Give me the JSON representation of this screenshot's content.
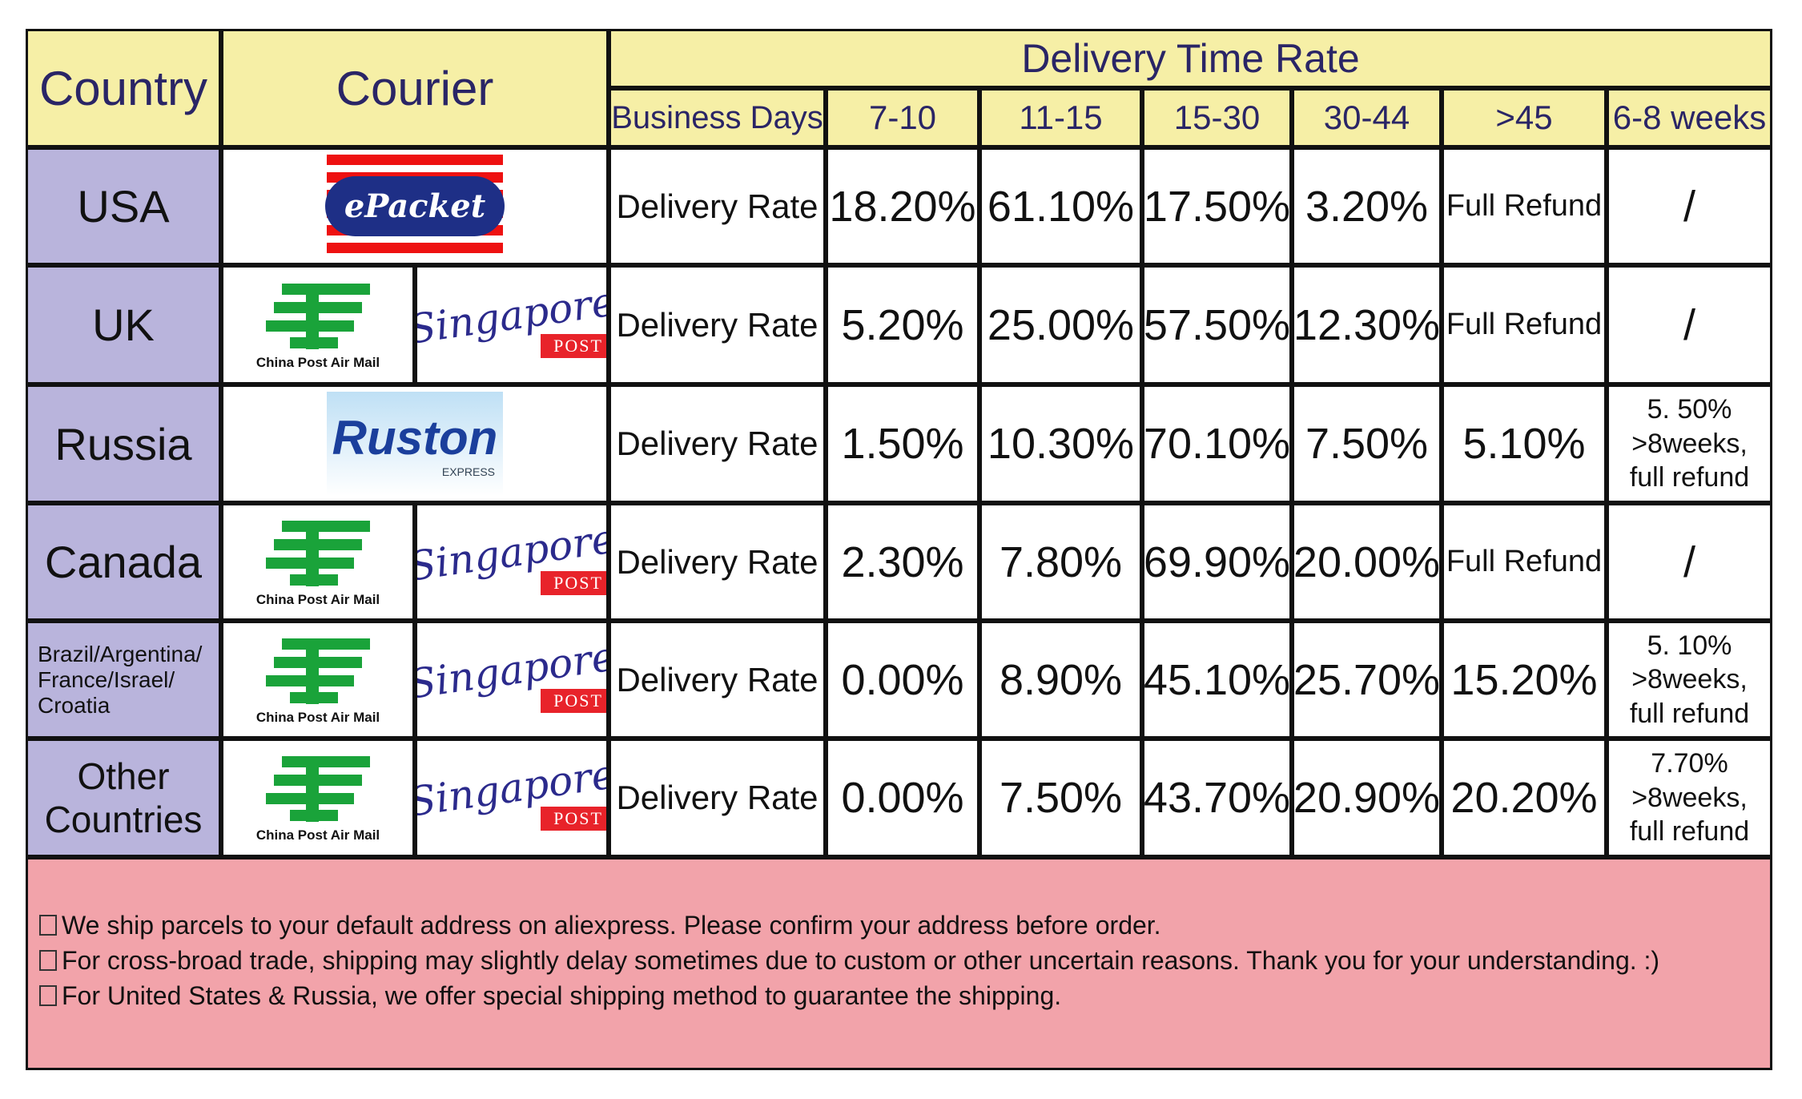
{
  "header": {
    "country": "Country",
    "courier": "Courier",
    "group": "Delivery Time Rate",
    "columns": [
      "Business Days",
      "7-10",
      "11-15",
      "15-30",
      "30-44",
      ">45",
      "6-8 weeks"
    ]
  },
  "rows": [
    {
      "country": "USA",
      "couriers": [
        [
          "ePacket"
        ]
      ],
      "label": "Delivery Rate",
      "rates": [
        "18.20%",
        "61.10%",
        "17.50%",
        "3.20%",
        "Full Refund",
        "/"
      ]
    },
    {
      "country": "UK",
      "couriers": [
        [
          "China Post Air Mail"
        ],
        [
          "Singapore",
          "POST"
        ]
      ],
      "label": "Delivery Rate",
      "rates": [
        "5.20%",
        "25.00%",
        "57.50%",
        "12.30%",
        "Full Refund",
        "/"
      ]
    },
    {
      "country": "Russia",
      "couriers": [
        [
          "Ruston",
          "EXPRESS"
        ]
      ],
      "label": "Delivery Rate",
      "rates": [
        "1.50%",
        "10.30%",
        "70.10%",
        "7.50%",
        "5.10%",
        "5. 50%\n>8weeks,\nfull refund"
      ]
    },
    {
      "country": "Canada",
      "couriers": [
        [
          "China Post Air Mail"
        ],
        [
          "Singapore",
          "POST"
        ]
      ],
      "label": "Delivery Rate",
      "rates": [
        "2.30%",
        "7.80%",
        "69.90%",
        "20.00%",
        "Full Refund",
        "/"
      ]
    },
    {
      "country": "Brazil/Argentina/\nFrance/Israel/\nCroatia",
      "couriers": [
        [
          "China Post Air Mail"
        ],
        [
          "Singapore",
          "POST"
        ]
      ],
      "label": "Delivery Rate",
      "rates": [
        "0.00%",
        "8.90%",
        "45.10%",
        "25.70%",
        "15.20%",
        "5. 10%\n>8weeks,\nfull refund"
      ]
    },
    {
      "country": "Other Countries",
      "couriers": [
        [
          "China Post Air Mail"
        ],
        [
          "Singapore",
          "POST"
        ]
      ],
      "label": "Delivery Rate",
      "rates": [
        "0.00%",
        "7.50%",
        "43.70%",
        "20.90%",
        "20.20%",
        "7.70%\n>8weeks,\nfull refund"
      ]
    }
  ],
  "notes": [
    "We ship parcels to your default address on aliexpress. Please confirm your address before order.",
    "For cross-broad trade, shipping may slightly delay sometimes due to custom or other uncertain reasons. Thank you for your understanding. :)",
    "For United States & Russia, we offer special shipping method to guarantee the shipping."
  ]
}
